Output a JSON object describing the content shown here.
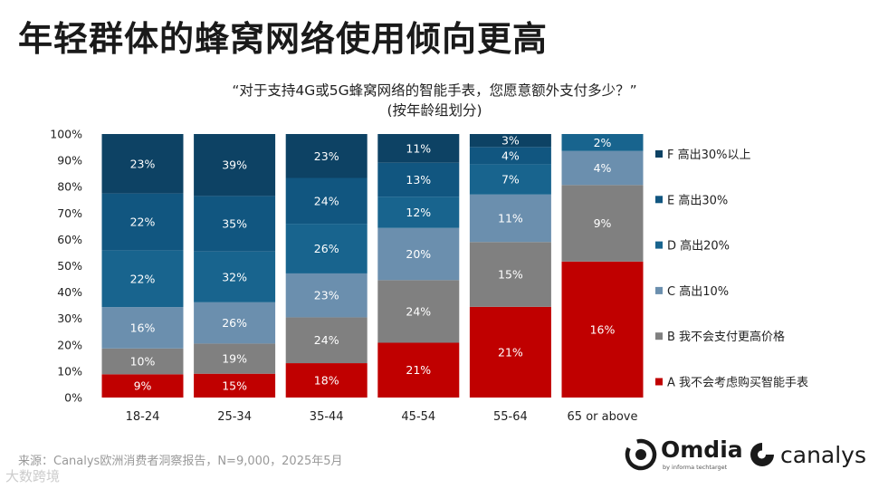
{
  "header": {
    "title": "年轻群体的蜂窝网络使用倾向更高",
    "subtitle_line1": "“对于支持4G或5G蜂窝网络的智能手表，您愿意额外支付多少？”",
    "subtitle_line2": "(按年龄组划分)"
  },
  "footer": {
    "source": "来源：Canalys欧洲消费者洞察报告，N=9,000，2025年5月",
    "watermark": "大数跨境"
  },
  "logos": {
    "omdia_name": "Omdia",
    "omdia_sub": "by informa techtarget",
    "canalys_name": "canalys"
  },
  "chart_data": {
    "type": "bar",
    "stacked": true,
    "normalized": true,
    "categories": [
      "18-24",
      "25-34",
      "35-44",
      "45-54",
      "55-64",
      "65 or above"
    ],
    "y_ticks": [
      "0%",
      "10%",
      "20%",
      "30%",
      "40%",
      "50%",
      "60%",
      "70%",
      "80%",
      "90%",
      "100%"
    ],
    "ylim": [
      0,
      100
    ],
    "legend_position": "right",
    "series": [
      {
        "key": "A",
        "name": "A 我不会考虑购买智能手表",
        "color": "#c00000",
        "values": [
          9,
          15,
          18,
          21,
          21,
          16
        ],
        "labels": [
          "9%",
          "15%",
          "18%",
          "21%",
          "21%",
          "16%"
        ]
      },
      {
        "key": "B",
        "name": "B 我不会支付更高价格",
        "color": "#808080",
        "values": [
          10,
          19,
          24,
          24,
          15,
          9
        ],
        "labels": [
          "10%",
          "19%",
          "24%",
          "24%",
          "15%",
          "9%"
        ]
      },
      {
        "key": "C",
        "name": "C 高出10%",
        "color": "#6b8fae",
        "values": [
          16,
          26,
          23,
          20,
          11,
          4
        ],
        "labels": [
          "16%",
          "26%",
          "23%",
          "20%",
          "11%",
          "4%"
        ]
      },
      {
        "key": "D",
        "name": "D 高出20%",
        "color": "#18648e",
        "values": [
          22,
          32,
          26,
          12,
          7,
          2
        ],
        "labels": [
          "22%",
          "32%",
          "26%",
          "12%",
          "7%",
          "2%"
        ]
      },
      {
        "key": "E",
        "name": "E 高出30%",
        "color": "#115680",
        "values": [
          22,
          35,
          24,
          13,
          4,
          0
        ],
        "labels": [
          "22%",
          "35%",
          "24%",
          "13%",
          "4%",
          ""
        ]
      },
      {
        "key": "F",
        "name": "F 高出30%以上",
        "color": "#0d4264",
        "values": [
          23,
          39,
          23,
          11,
          3,
          0
        ],
        "labels": [
          "23%",
          "39%",
          "23%",
          "11%",
          "3%",
          ""
        ]
      }
    ]
  }
}
